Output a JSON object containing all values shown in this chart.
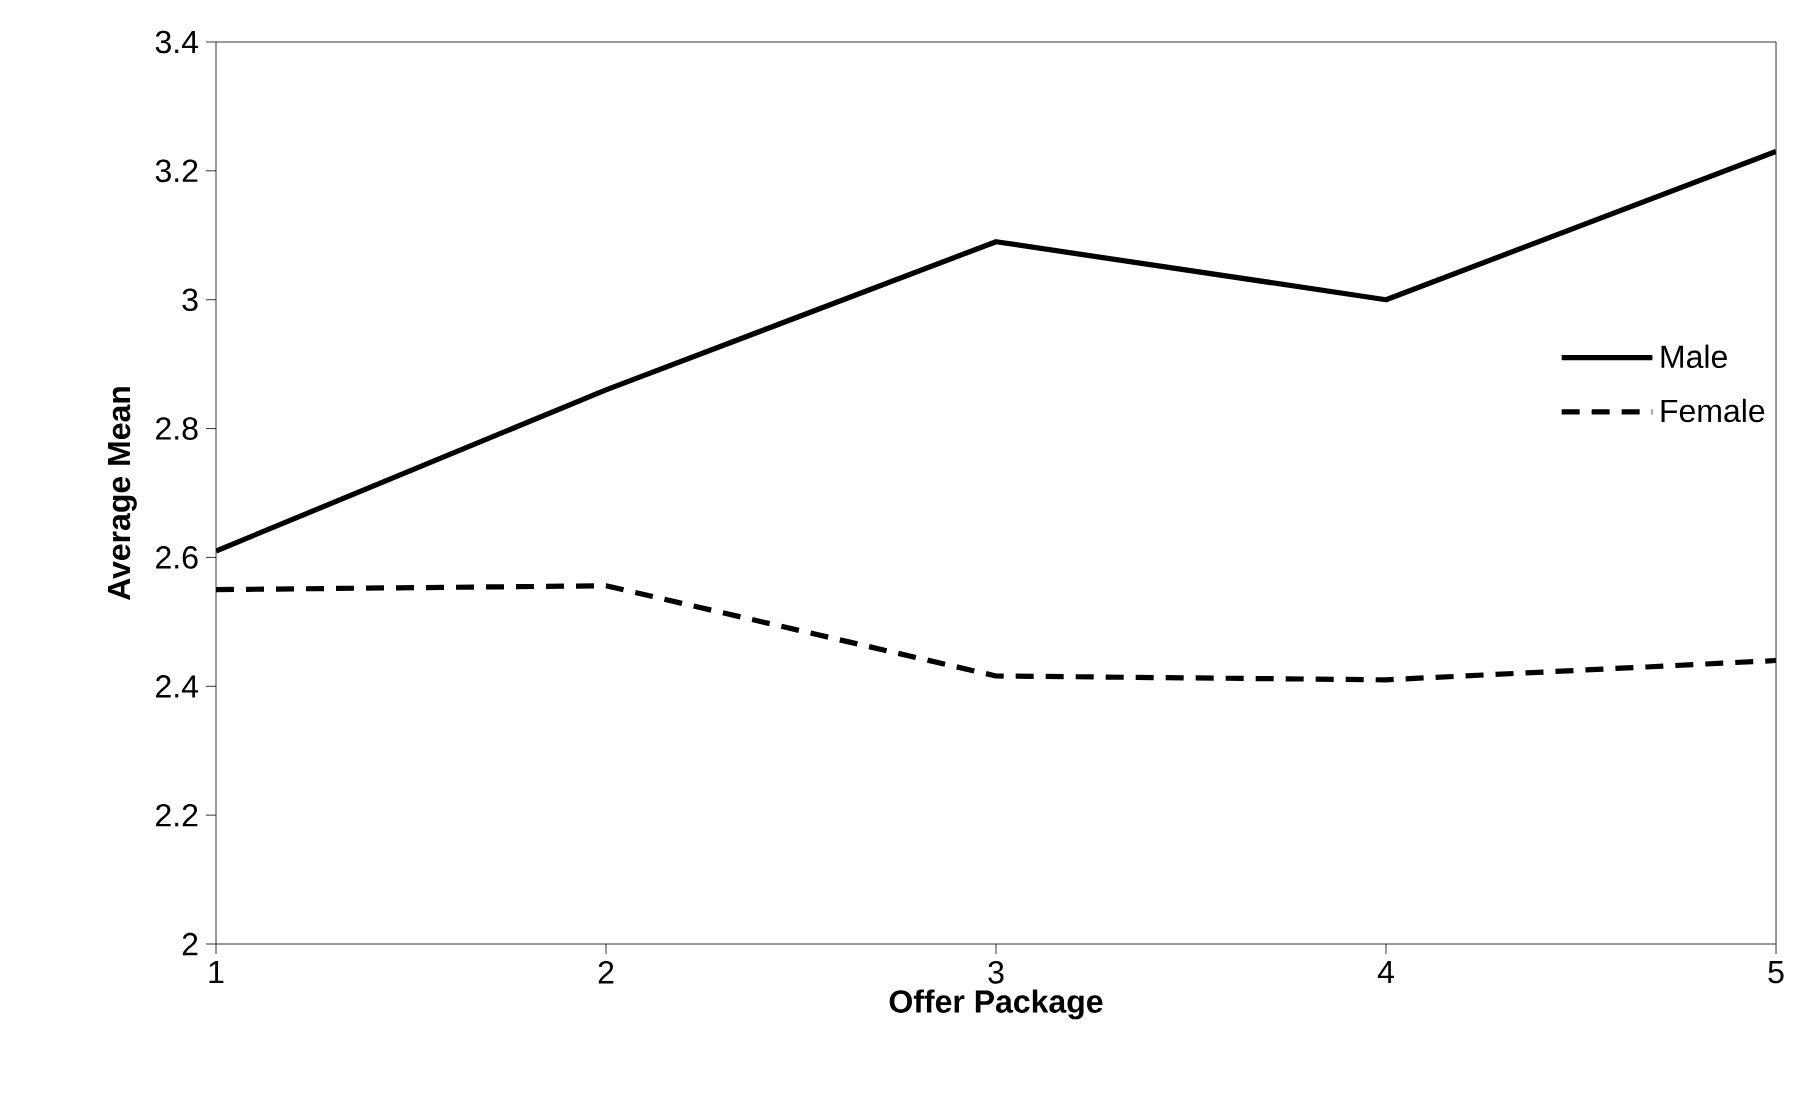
{
  "chart_data": {
    "type": "line",
    "xlabel": "Offer Package",
    "ylabel": "Average Mean",
    "x": [
      1,
      2,
      3,
      4,
      5
    ],
    "xlim": [
      1,
      5
    ],
    "xticks": [
      1,
      2,
      3,
      4,
      5
    ],
    "ylim": [
      2,
      3.4
    ],
    "yticks": [
      2,
      2.2,
      2.4,
      2.6,
      2.8,
      3,
      3.2,
      3.4
    ],
    "legend": "right",
    "grid": false,
    "marker": "none",
    "series": [
      {
        "name": "Male",
        "color": "#000000",
        "line_style": "solid",
        "values": [
          2.61,
          2.86,
          3.09,
          3.0,
          3.23
        ]
      },
      {
        "name": "Female",
        "color": "#000000",
        "line_style": "dashed",
        "values": [
          2.55,
          2.556,
          2.416,
          2.41,
          2.44
        ]
      }
    ]
  }
}
